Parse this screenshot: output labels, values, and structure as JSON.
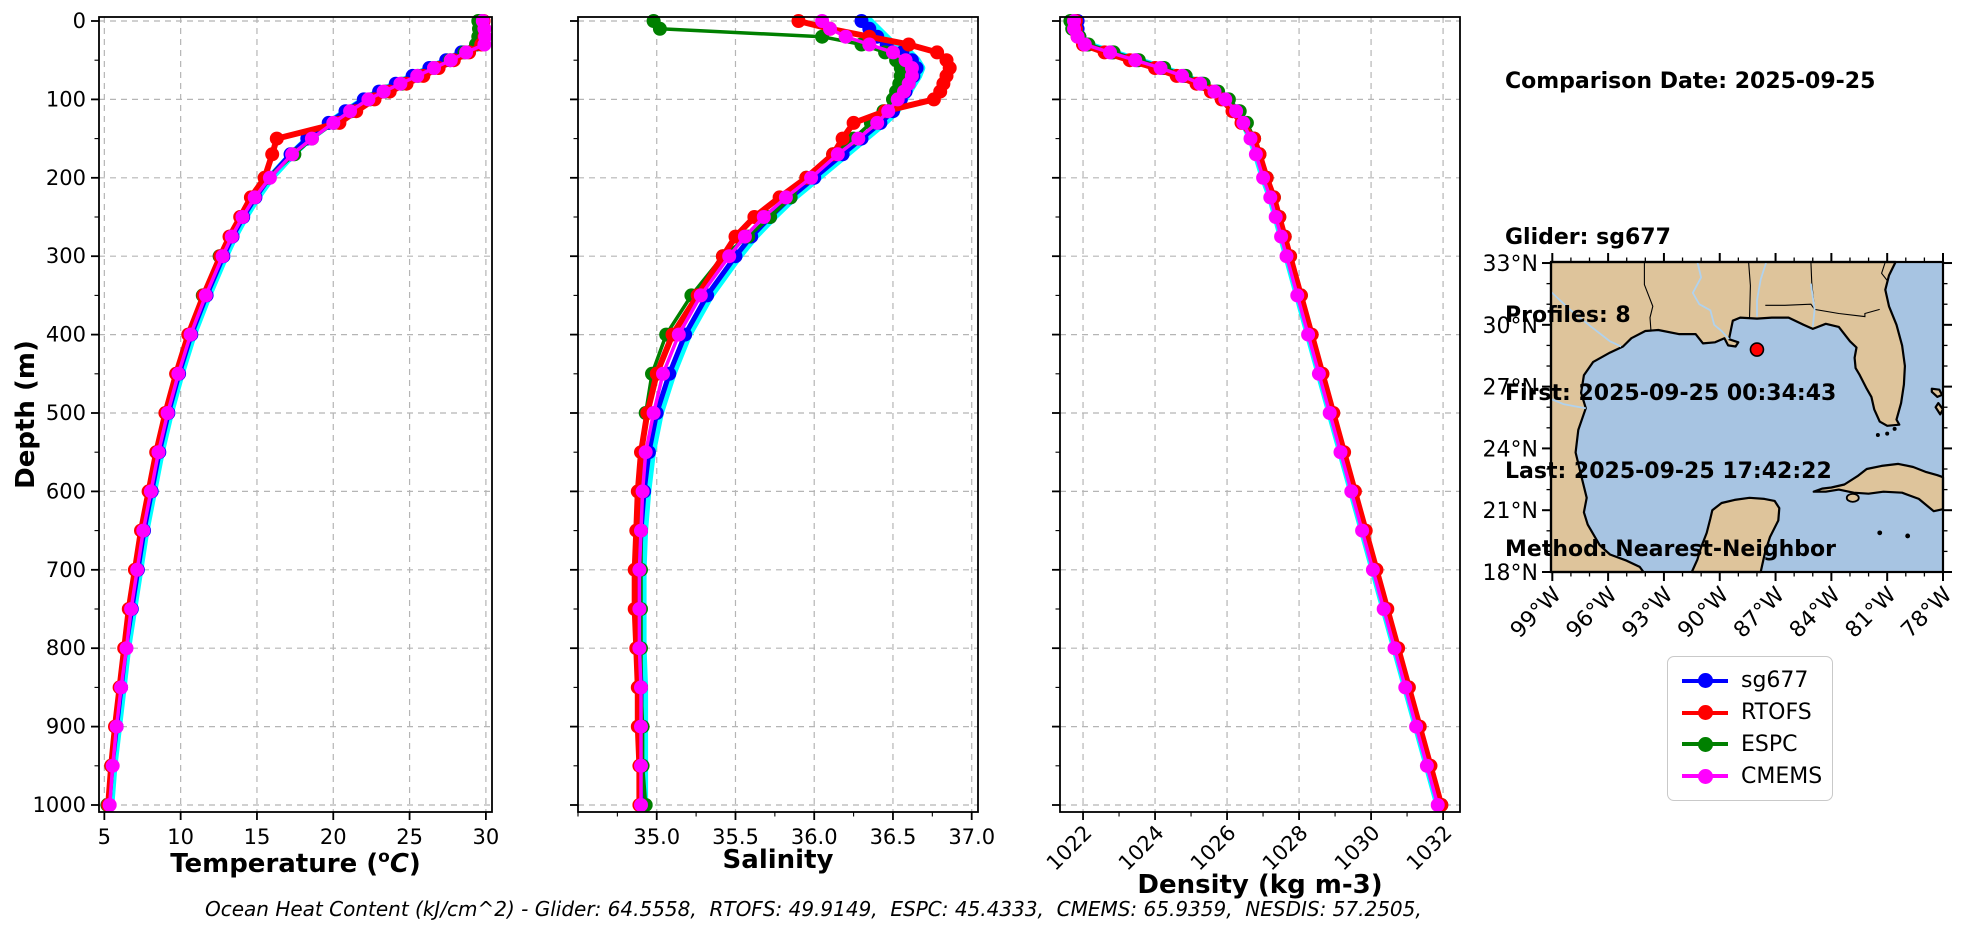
{
  "info_panel": {
    "lines": [
      "Comparison Date: 2025-09-25",
      "Glider: sg677",
      "Profiles: 8",
      "First: 2025-09-25 00:34:43",
      "Last: 2025-09-25 17:42:22",
      "Method: Nearest-Neighbor"
    ]
  },
  "footer": {
    "ohc_text": "Ocean Heat Content (kJ/cm^2) - Glider: 64.5558,  RTOFS: 49.9149,  ESPC: 45.4333,  CMEMS: 65.9359,  NESDIS: 57.2505,"
  },
  "legend": {
    "entries": [
      {
        "label": "sg677",
        "color": "#0000ff"
      },
      {
        "label": "RTOFS",
        "color": "#ff0000"
      },
      {
        "label": "ESPC",
        "color": "#008000"
      },
      {
        "label": "CMEMS",
        "color": "#ff00ff"
      }
    ]
  },
  "colors": {
    "sg677": "#0000ff",
    "rtofs": "#ff0000",
    "espc": "#008000",
    "cmems": "#ff00ff",
    "cyan_profiles": "#00ffff",
    "grid": "#b5b5b5",
    "land": "#dec49b",
    "water": "#a7c4e2",
    "river": "#b0d2ee",
    "marker": "#ff0000"
  },
  "ylabel": "Depth (m)",
  "chart_data": [
    {
      "id": "temperature",
      "type": "line",
      "xlabel": "Temperature (°C)",
      "ylabel": "Depth (m)",
      "xlim": [
        4.65,
        30.4
      ],
      "ylim": [
        1010,
        -10
      ],
      "grid": true,
      "xtick_values": [
        5,
        10,
        15,
        20,
        25,
        30
      ],
      "xtick_labels": [
        "5",
        "10",
        "15",
        "20",
        "25",
        "30"
      ],
      "ytick_values": [
        0,
        100,
        200,
        300,
        400,
        500,
        600,
        700,
        800,
        900,
        1000
      ],
      "ytick_labels": [
        "0",
        "100",
        "200",
        "300",
        "400",
        "500",
        "600",
        "700",
        "800",
        "900",
        "1000"
      ],
      "depths": [
        0,
        10,
        20,
        30,
        40,
        50,
        60,
        70,
        80,
        90,
        100,
        115,
        130,
        150,
        170,
        200,
        225,
        250,
        275,
        300,
        350,
        400,
        450,
        500,
        550,
        600,
        650,
        700,
        750,
        800,
        850,
        900,
        950,
        1000
      ],
      "series": [
        {
          "name": "cyan-profiles",
          "color": "#00ffff",
          "lw": 8,
          "marker": false,
          "values": [
            29.9,
            29.9,
            29.8,
            29.5,
            28.5,
            27.5,
            26.4,
            25.3,
            24.2,
            23.1,
            22.1,
            20.9,
            19.8,
            18.4,
            17.3,
            15.9,
            15.0,
            14.2,
            13.5,
            12.9,
            11.8,
            10.8,
            10.0,
            9.3,
            8.7,
            8.2,
            7.7,
            7.3,
            6.9,
            6.5,
            6.2,
            5.9,
            5.6,
            5.4
          ]
        },
        {
          "name": "sg677",
          "color": "#0000ff",
          "lw": 5,
          "marker": true,
          "values": [
            29.75,
            29.75,
            29.7,
            29.4,
            28.4,
            27.4,
            26.3,
            25.2,
            24.1,
            23.0,
            22.0,
            20.8,
            19.7,
            18.3,
            17.2,
            15.8,
            14.9,
            14.1,
            13.4,
            12.8,
            11.7,
            10.7,
            9.9,
            9.2,
            8.6,
            8.1,
            7.6,
            7.2,
            6.8,
            6.4,
            6.1,
            5.8,
            5.5,
            5.3
          ]
        },
        {
          "name": "ESPC",
          "color": "#008000",
          "lw": 3.5,
          "marker": true,
          "values": [
            29.5,
            29.55,
            29.5,
            29.35,
            28.6,
            27.65,
            26.6,
            25.55,
            24.5,
            23.4,
            22.4,
            21.2,
            20.05,
            18.6,
            17.45,
            15.7,
            14.75,
            13.95,
            13.25,
            12.55,
            11.45,
            10.55,
            9.8,
            9.1,
            8.5,
            8.0,
            7.5,
            7.1,
            6.7,
            6.35,
            6.05,
            5.75,
            5.45,
            5.2
          ]
        },
        {
          "name": "RTOFS",
          "color": "#ff0000",
          "lw": 6,
          "marker": true,
          "values": [
            29.85,
            29.9,
            29.9,
            29.7,
            28.9,
            27.9,
            26.9,
            25.9,
            24.8,
            23.7,
            22.7,
            21.5,
            20.4,
            16.3,
            16.0,
            15.5,
            14.6,
            13.9,
            13.2,
            12.6,
            11.5,
            10.5,
            9.7,
            9.0,
            8.4,
            7.9,
            7.4,
            7.0,
            6.6,
            6.3,
            6.0,
            5.7,
            5.45,
            5.25
          ]
        },
        {
          "name": "CMEMS",
          "color": "#ff00ff",
          "lw": 3.5,
          "marker": true,
          "values": [
            29.8,
            29.9,
            29.95,
            29.9,
            28.7,
            27.7,
            26.6,
            25.5,
            24.4,
            23.3,
            22.3,
            21.1,
            20.0,
            18.6,
            17.3,
            15.85,
            14.85,
            14.05,
            13.35,
            12.75,
            11.65,
            10.65,
            9.85,
            9.15,
            8.55,
            8.05,
            7.55,
            7.15,
            6.75,
            6.45,
            6.1,
            5.8,
            5.55,
            5.35
          ]
        }
      ]
    },
    {
      "id": "salinity",
      "type": "line",
      "xlabel": "Salinity",
      "ylabel": "Depth (m)",
      "xlim": [
        34.5,
        37.04
      ],
      "ylim": [
        1010,
        -10
      ],
      "grid": true,
      "xtick_values": [
        35.0,
        35.5,
        36.0,
        36.5,
        37.0
      ],
      "xtick_labels": [
        "35.0",
        "35.5",
        "36.0",
        "36.5",
        "37.0"
      ],
      "minor_x_step": 0.25,
      "ytick_values": [
        0,
        100,
        200,
        300,
        400,
        500,
        600,
        700,
        800,
        900,
        1000
      ],
      "ytick_labels": [],
      "depths": [
        0,
        10,
        20,
        30,
        40,
        50,
        60,
        70,
        80,
        90,
        100,
        115,
        130,
        150,
        170,
        200,
        225,
        250,
        275,
        300,
        350,
        400,
        450,
        500,
        550,
        600,
        650,
        700,
        750,
        800,
        850,
        900,
        950,
        1000
      ],
      "series": [
        {
          "name": "cyan-profiles",
          "color": "#00ffff",
          "lw": 8,
          "marker": false,
          "values": [
            36.35,
            36.4,
            36.45,
            36.5,
            36.6,
            36.65,
            36.68,
            36.66,
            36.63,
            36.6,
            36.57,
            36.52,
            36.44,
            36.32,
            36.2,
            36.02,
            35.87,
            35.74,
            35.62,
            35.52,
            35.34,
            35.2,
            35.1,
            35.02,
            34.97,
            34.94,
            34.92,
            34.91,
            34.91,
            34.91,
            34.92,
            34.92,
            34.92,
            34.92
          ]
        },
        {
          "name": "sg677",
          "color": "#0000ff",
          "lw": 5,
          "marker": true,
          "values": [
            36.3,
            36.35,
            36.4,
            36.46,
            36.56,
            36.62,
            36.65,
            36.63,
            36.6,
            36.58,
            36.55,
            36.5,
            36.42,
            36.3,
            36.18,
            36.0,
            35.85,
            35.72,
            35.6,
            35.5,
            35.32,
            35.18,
            35.08,
            35.0,
            34.95,
            34.92,
            34.9,
            34.89,
            34.89,
            34.89,
            34.9,
            34.9,
            34.9,
            34.9
          ]
        },
        {
          "name": "ESPC",
          "color": "#008000",
          "lw": 3.5,
          "marker": true,
          "values": [
            34.98,
            35.02,
            36.05,
            36.3,
            36.45,
            36.52,
            36.55,
            36.55,
            36.54,
            36.52,
            36.5,
            36.44,
            36.36,
            36.25,
            36.12,
            35.95,
            35.85,
            35.72,
            35.58,
            35.42,
            35.22,
            35.06,
            34.97,
            34.93,
            34.91,
            34.9,
            34.9,
            34.9,
            34.9,
            34.9,
            34.9,
            34.91,
            34.91,
            34.93
          ]
        },
        {
          "name": "RTOFS",
          "color": "#ff0000",
          "lw": 6,
          "marker": true,
          "values": [
            35.9,
            36.1,
            36.35,
            36.6,
            36.78,
            36.84,
            36.86,
            36.84,
            36.82,
            36.8,
            36.76,
            36.45,
            36.25,
            36.18,
            36.12,
            35.95,
            35.78,
            35.62,
            35.5,
            35.42,
            35.26,
            35.1,
            35.0,
            34.94,
            34.9,
            34.88,
            34.87,
            34.86,
            34.86,
            34.87,
            34.88,
            34.88,
            34.89,
            34.89
          ]
        },
        {
          "name": "CMEMS",
          "color": "#ff00ff",
          "lw": 3.5,
          "marker": true,
          "values": [
            36.05,
            36.1,
            36.2,
            36.35,
            36.5,
            36.58,
            36.62,
            36.62,
            36.6,
            36.57,
            36.53,
            36.47,
            36.4,
            36.28,
            36.15,
            35.98,
            35.82,
            35.68,
            35.56,
            35.46,
            35.28,
            35.14,
            35.04,
            34.98,
            34.93,
            34.91,
            34.9,
            34.89,
            34.89,
            34.89,
            34.9,
            34.9,
            34.9,
            34.9
          ]
        }
      ]
    },
    {
      "id": "density",
      "type": "line",
      "xlabel": "Density (kg m-3)",
      "ylabel": "Depth (m)",
      "xlim": [
        1021.36,
        1032.47
      ],
      "ylim": [
        1010,
        -10
      ],
      "grid": true,
      "xtick_values": [
        1022,
        1024,
        1026,
        1028,
        1030,
        1032
      ],
      "xtick_labels": [
        "1022",
        "1024",
        "1026",
        "1028",
        "1030",
        "1032"
      ],
      "xtick_rotation": -45,
      "minor_x_step": 1,
      "ytick_values": [
        0,
        100,
        200,
        300,
        400,
        500,
        600,
        700,
        800,
        900,
        1000
      ],
      "ytick_labels": [],
      "depths": [
        0,
        10,
        20,
        30,
        40,
        50,
        60,
        70,
        80,
        90,
        100,
        115,
        130,
        150,
        170,
        200,
        225,
        250,
        275,
        300,
        350,
        400,
        450,
        500,
        550,
        600,
        650,
        700,
        750,
        800,
        850,
        900,
        950,
        1000
      ],
      "series": [
        {
          "name": "cyan-profiles",
          "color": "#00ffff",
          "lw": 8,
          "marker": false,
          "values": [
            1021.82,
            1021.82,
            1021.87,
            1022.07,
            1022.77,
            1023.47,
            1024.17,
            1024.77,
            1025.27,
            1025.67,
            1025.97,
            1026.27,
            1026.47,
            1026.67,
            1026.82,
            1027.02,
            1027.22,
            1027.37,
            1027.52,
            1027.67,
            1027.97,
            1028.27,
            1028.57,
            1028.87,
            1029.17,
            1029.47,
            1029.77,
            1030.07,
            1030.37,
            1030.67,
            1030.97,
            1031.27,
            1031.57,
            1031.87
          ]
        },
        {
          "name": "sg677",
          "color": "#0000ff",
          "lw": 5,
          "marker": true,
          "values": [
            1021.85,
            1021.85,
            1021.9,
            1022.1,
            1022.8,
            1023.5,
            1024.2,
            1024.8,
            1025.3,
            1025.7,
            1026.0,
            1026.3,
            1026.5,
            1026.7,
            1026.85,
            1027.05,
            1027.25,
            1027.4,
            1027.55,
            1027.7,
            1028.0,
            1028.3,
            1028.6,
            1028.9,
            1029.2,
            1029.5,
            1029.8,
            1030.1,
            1030.4,
            1030.7,
            1031.0,
            1031.3,
            1031.6,
            1031.9
          ]
        },
        {
          "name": "ESPC",
          "color": "#008000",
          "lw": 3.5,
          "marker": true,
          "values": [
            1021.65,
            1021.7,
            1021.9,
            1022.15,
            1022.85,
            1023.55,
            1024.25,
            1024.85,
            1025.35,
            1025.75,
            1026.05,
            1026.35,
            1026.55,
            1026.75,
            1026.9,
            1027.1,
            1027.3,
            1027.45,
            1027.6,
            1027.75,
            1028.05,
            1028.3,
            1028.6,
            1028.9,
            1029.2,
            1029.5,
            1029.8,
            1030.1,
            1030.4,
            1030.7,
            1031.0,
            1031.3,
            1031.6,
            1031.95
          ]
        },
        {
          "name": "RTOFS",
          "color": "#ff0000",
          "lw": 6,
          "marker": true,
          "values": [
            1021.8,
            1021.8,
            1021.85,
            1022.0,
            1022.6,
            1023.3,
            1024.0,
            1024.6,
            1025.15,
            1025.55,
            1025.85,
            1026.15,
            1026.4,
            1026.75,
            1026.9,
            1027.1,
            1027.3,
            1027.45,
            1027.6,
            1027.75,
            1028.05,
            1028.35,
            1028.65,
            1028.95,
            1029.25,
            1029.55,
            1029.85,
            1030.15,
            1030.45,
            1030.75,
            1031.05,
            1031.35,
            1031.65,
            1031.95
          ]
        },
        {
          "name": "CMEMS",
          "color": "#ff00ff",
          "lw": 3.5,
          "marker": true,
          "values": [
            1021.75,
            1021.75,
            1021.85,
            1022.05,
            1022.75,
            1023.45,
            1024.15,
            1024.75,
            1025.25,
            1025.65,
            1025.95,
            1026.25,
            1026.45,
            1026.65,
            1026.8,
            1027.0,
            1027.2,
            1027.35,
            1027.5,
            1027.65,
            1027.95,
            1028.25,
            1028.55,
            1028.85,
            1029.15,
            1029.45,
            1029.75,
            1030.05,
            1030.35,
            1030.65,
            1030.95,
            1031.25,
            1031.55,
            1031.85
          ]
        }
      ]
    }
  ],
  "map_panel": {
    "lat_tick_values": [
      33,
      30,
      27,
      24,
      21,
      18
    ],
    "lat_tick_labels": [
      "33°N",
      "30°N",
      "27°N",
      "24°N",
      "21°N",
      "18°N"
    ],
    "lon_tick_values": [
      99,
      96,
      93,
      90,
      87,
      84,
      81,
      78
    ],
    "lon_tick_labels": [
      "99°W",
      "96°W",
      "93°W",
      "90°W",
      "87°W",
      "84°W",
      "81°W",
      "78°W"
    ],
    "extent": {
      "lon_west": 99.07,
      "lon_east": 78.0,
      "lat_south": 18.0,
      "lat_north": 33.05
    },
    "glider_marker": {
      "lon_w": 88.0,
      "lat_n": 28.8,
      "color": "#ff0000"
    }
  }
}
